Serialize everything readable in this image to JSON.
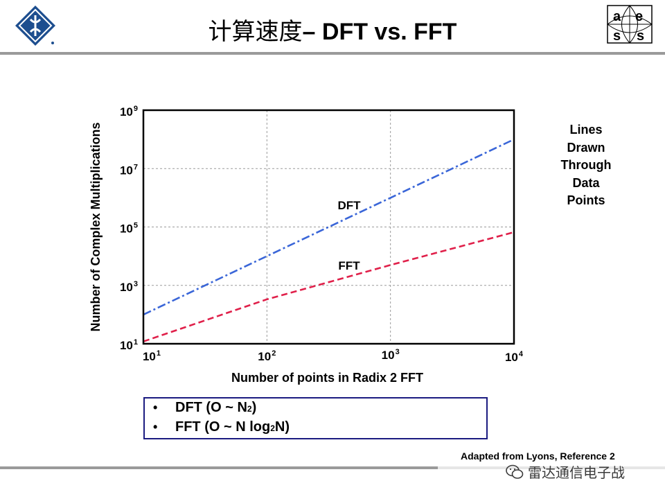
{
  "header": {
    "title_cn": "计算速度",
    "title_en": "– DFT vs. FFT",
    "logo_left_icon": "ieee-diamond-logo",
    "logo_right_icon": "aess-logo",
    "logo_right_letters": [
      "a",
      "e",
      "s",
      "s"
    ]
  },
  "chart_data": {
    "type": "line",
    "title": "",
    "xlabel": "Number of points in Radix 2 FFT",
    "ylabel": "Number of Complex Multiplications",
    "xscale": "log",
    "yscale": "log",
    "xlim": [
      10,
      10000
    ],
    "ylim": [
      10,
      1000000000
    ],
    "xticks": [
      10,
      100,
      1000,
      10000
    ],
    "xtick_labels": [
      {
        "base": "10",
        "exp": "1"
      },
      {
        "base": "10",
        "exp": "2"
      },
      {
        "base": "10",
        "exp": "3"
      },
      {
        "base": "10",
        "exp": "4"
      }
    ],
    "yticks": [
      10,
      1000,
      100000,
      10000000,
      1000000000
    ],
    "ytick_labels": [
      {
        "base": "10",
        "exp": "1"
      },
      {
        "base": "10",
        "exp": "3"
      },
      {
        "base": "10",
        "exp": "5"
      },
      {
        "base": "10",
        "exp": "7"
      },
      {
        "base": "10",
        "exp": "9"
      }
    ],
    "grid": true,
    "series": [
      {
        "name": "DFT",
        "color": "#3a66d8",
        "style": "dash-dot",
        "x": [
          10,
          100,
          1000,
          10000
        ],
        "y": [
          100,
          10000,
          1000000,
          100000000
        ]
      },
      {
        "name": "FFT",
        "color": "#e0204a",
        "style": "dashed",
        "x": [
          10,
          100,
          1000,
          10000
        ],
        "y": [
          12,
          332,
          4983,
          66439
        ]
      }
    ]
  },
  "side_note": {
    "lines": [
      "Lines",
      "Drawn",
      "Through",
      "Data",
      "Points"
    ]
  },
  "legend_box": {
    "bullet": "•",
    "dft": {
      "text": "DFT (O ~ N",
      "sup": "2",
      "close": ")"
    },
    "fft": {
      "text": "FFT  (O ~ N log",
      "sub": "2",
      "close": " N)"
    }
  },
  "footer": {
    "credit": "Adapted from Lyons, Reference 2",
    "watermark": "雷达通信电子战",
    "watermark_icon": "wechat-icon"
  }
}
